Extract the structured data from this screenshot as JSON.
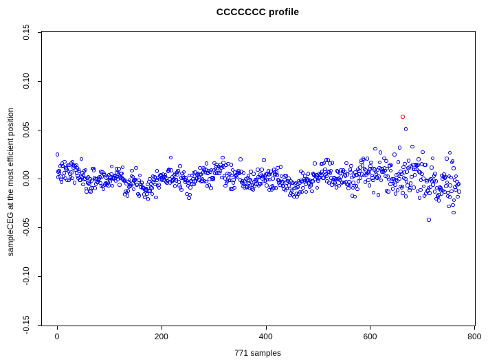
{
  "chart_data": {
    "type": "scatter",
    "title": "CCCCCCC profile",
    "xlabel": "771 samples",
    "ylabel": "sampleCEG at the most efficient position",
    "n_samples": 771,
    "xlim": [
      -28.9,
      800.9
    ],
    "ylim": [
      -0.1509,
      0.1509
    ],
    "x_ticks": [
      0,
      200,
      400,
      600,
      800
    ],
    "x_tick_labels": [
      "0",
      "200",
      "400",
      "600",
      "800"
    ],
    "y_ticks": [
      -0.15,
      -0.1,
      -0.05,
      0.0,
      0.05,
      0.1,
      0.15
    ],
    "y_tick_labels": [
      "-0.15",
      "-0.10",
      "-0.05",
      "0.00",
      "0.05",
      "0.10",
      "0.15"
    ],
    "grid": false,
    "legend": "none",
    "point_color": "#0000ff",
    "highlight_point": {
      "x": 663,
      "y": 0.0635,
      "color": "#ff0000"
    },
    "notable_points": [
      {
        "x": 669,
        "y": 0.0505,
        "color": "#0000ff"
      },
      {
        "x": 753,
        "y": 0.0265,
        "color": "#0000ff"
      },
      {
        "x": 760,
        "y": -0.035,
        "color": "#0000ff"
      }
    ],
    "scatter_model": {
      "description": "771 blue open circles, x = sample index 1..771, y = noisy band around 0; tighter (sd~0.006, |y|<0.025) for x<520, spread widens to sd~0.0125 with excursions to +0.05/-0.04 for x>600",
      "seed": 7,
      "n": 771,
      "base_sd": 0.0062,
      "ramp_start": 520,
      "ramp_span": 180,
      "extra_sd": 0.0065,
      "bump_center": 655,
      "bump_width": 38,
      "bump_height": 0.006,
      "clamp": [
        -0.043,
        0.052
      ],
      "wiggle": [
        [
          0.0042,
          15.5,
          0.4
        ],
        [
          0.0036,
          44.0,
          1.2
        ],
        [
          0.0028,
          6.3,
          2.1
        ]
      ]
    }
  }
}
